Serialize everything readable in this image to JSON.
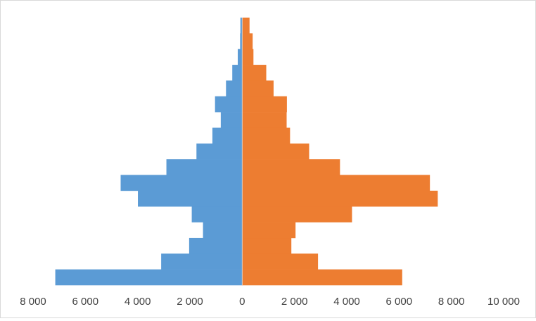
{
  "chart_data": {
    "type": "bar",
    "orientation": "horizontal",
    "layout": "population-pyramid",
    "title": "",
    "xlabel": "",
    "ylabel": "",
    "xlim": [
      -8000,
      10000
    ],
    "x_tick_values": [
      -8000,
      -6000,
      -4000,
      -2000,
      0,
      2000,
      4000,
      6000,
      8000,
      10000
    ],
    "x_tick_labels": [
      "8 000",
      "6 000",
      "4 000",
      "2 000",
      "0",
      "2 000",
      "4 000",
      "6 000",
      "8 000",
      "10 000"
    ],
    "grid": false,
    "legend": "none",
    "order": "bottom-to-top",
    "series": [
      {
        "color": "#5b9bd5",
        "side": "left",
        "values": [
          7150,
          3100,
          2030,
          1500,
          1930,
          3990,
          4650,
          2900,
          1750,
          1140,
          820,
          1040,
          620,
          380,
          170,
          80,
          70
        ]
      },
      {
        "color": "#ed7d31",
        "side": "right",
        "values": [
          6120,
          2900,
          1880,
          2040,
          4200,
          7480,
          7180,
          3740,
          2560,
          1830,
          1700,
          1710,
          1200,
          920,
          430,
          400,
          280
        ]
      }
    ]
  }
}
